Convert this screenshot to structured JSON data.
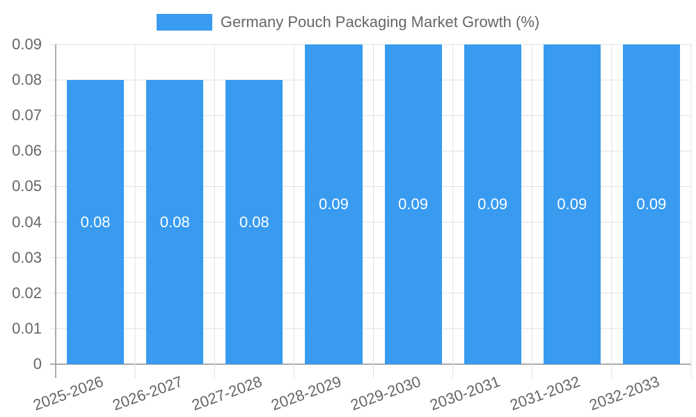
{
  "chart_data": {
    "type": "bar",
    "title": "",
    "legend": [
      "Germany Pouch Packaging Market Growth (%)"
    ],
    "legend_position": "top",
    "categories": [
      "2025-2026",
      "2026-2027",
      "2027-2028",
      "2028-2029",
      "2029-2030",
      "2030-2031",
      "2031-2032",
      "2032-2033"
    ],
    "series": [
      {
        "name": "Germany Pouch Packaging Market Growth (%)",
        "values": [
          0.08,
          0.08,
          0.08,
          0.09,
          0.09,
          0.09,
          0.09,
          0.09
        ],
        "color": "#389BF0"
      }
    ],
    "data_labels": [
      "0.08",
      "0.08",
      "0.08",
      "0.09",
      "0.09",
      "0.09",
      "0.09",
      "0.09"
    ],
    "xlabel": "",
    "ylabel": "",
    "ylim": [
      0,
      0.09
    ],
    "yticks": [
      "0.09",
      "0.08",
      "0.07",
      "0.06",
      "0.05",
      "0.04",
      "0.03",
      "0.02",
      "0.01",
      "0"
    ],
    "grid": true
  },
  "legend": {
    "label": "Germany Pouch Packaging Market Growth (%)",
    "color": "#389BF0"
  }
}
